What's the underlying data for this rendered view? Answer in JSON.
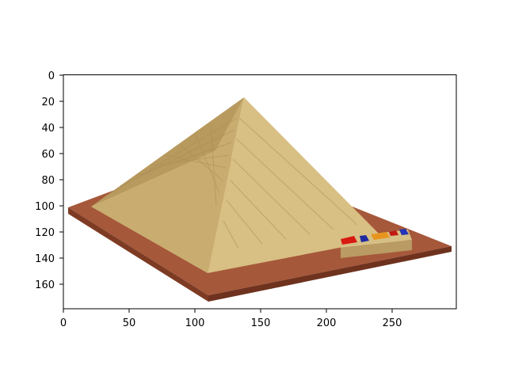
{
  "image": {
    "description_type": "matplotlib imshow of a 3D pyramid render",
    "xlim": [
      0,
      300
    ],
    "ylim": [
      180,
      0
    ],
    "x_ticks": [
      0,
      50,
      100,
      150,
      200,
      250
    ],
    "y_ticks": [
      0,
      20,
      40,
      60,
      80,
      100,
      120,
      140,
      160
    ],
    "colors": {
      "pyramid_light": "#d8bf83",
      "pyramid_mid": "#c9ad70",
      "pyramid_dark": "#b89a5e",
      "ground_top": "#a6583a",
      "ground_side": "#7e3b24",
      "block_face": "#d6bf86",
      "block_side": "#b99b63"
    },
    "x_tick_labels": [
      "0",
      "50",
      "100",
      "150",
      "200",
      "250"
    ],
    "y_tick_labels": [
      "0",
      "20",
      "40",
      "60",
      "80",
      "100",
      "120",
      "140",
      "160"
    ]
  }
}
